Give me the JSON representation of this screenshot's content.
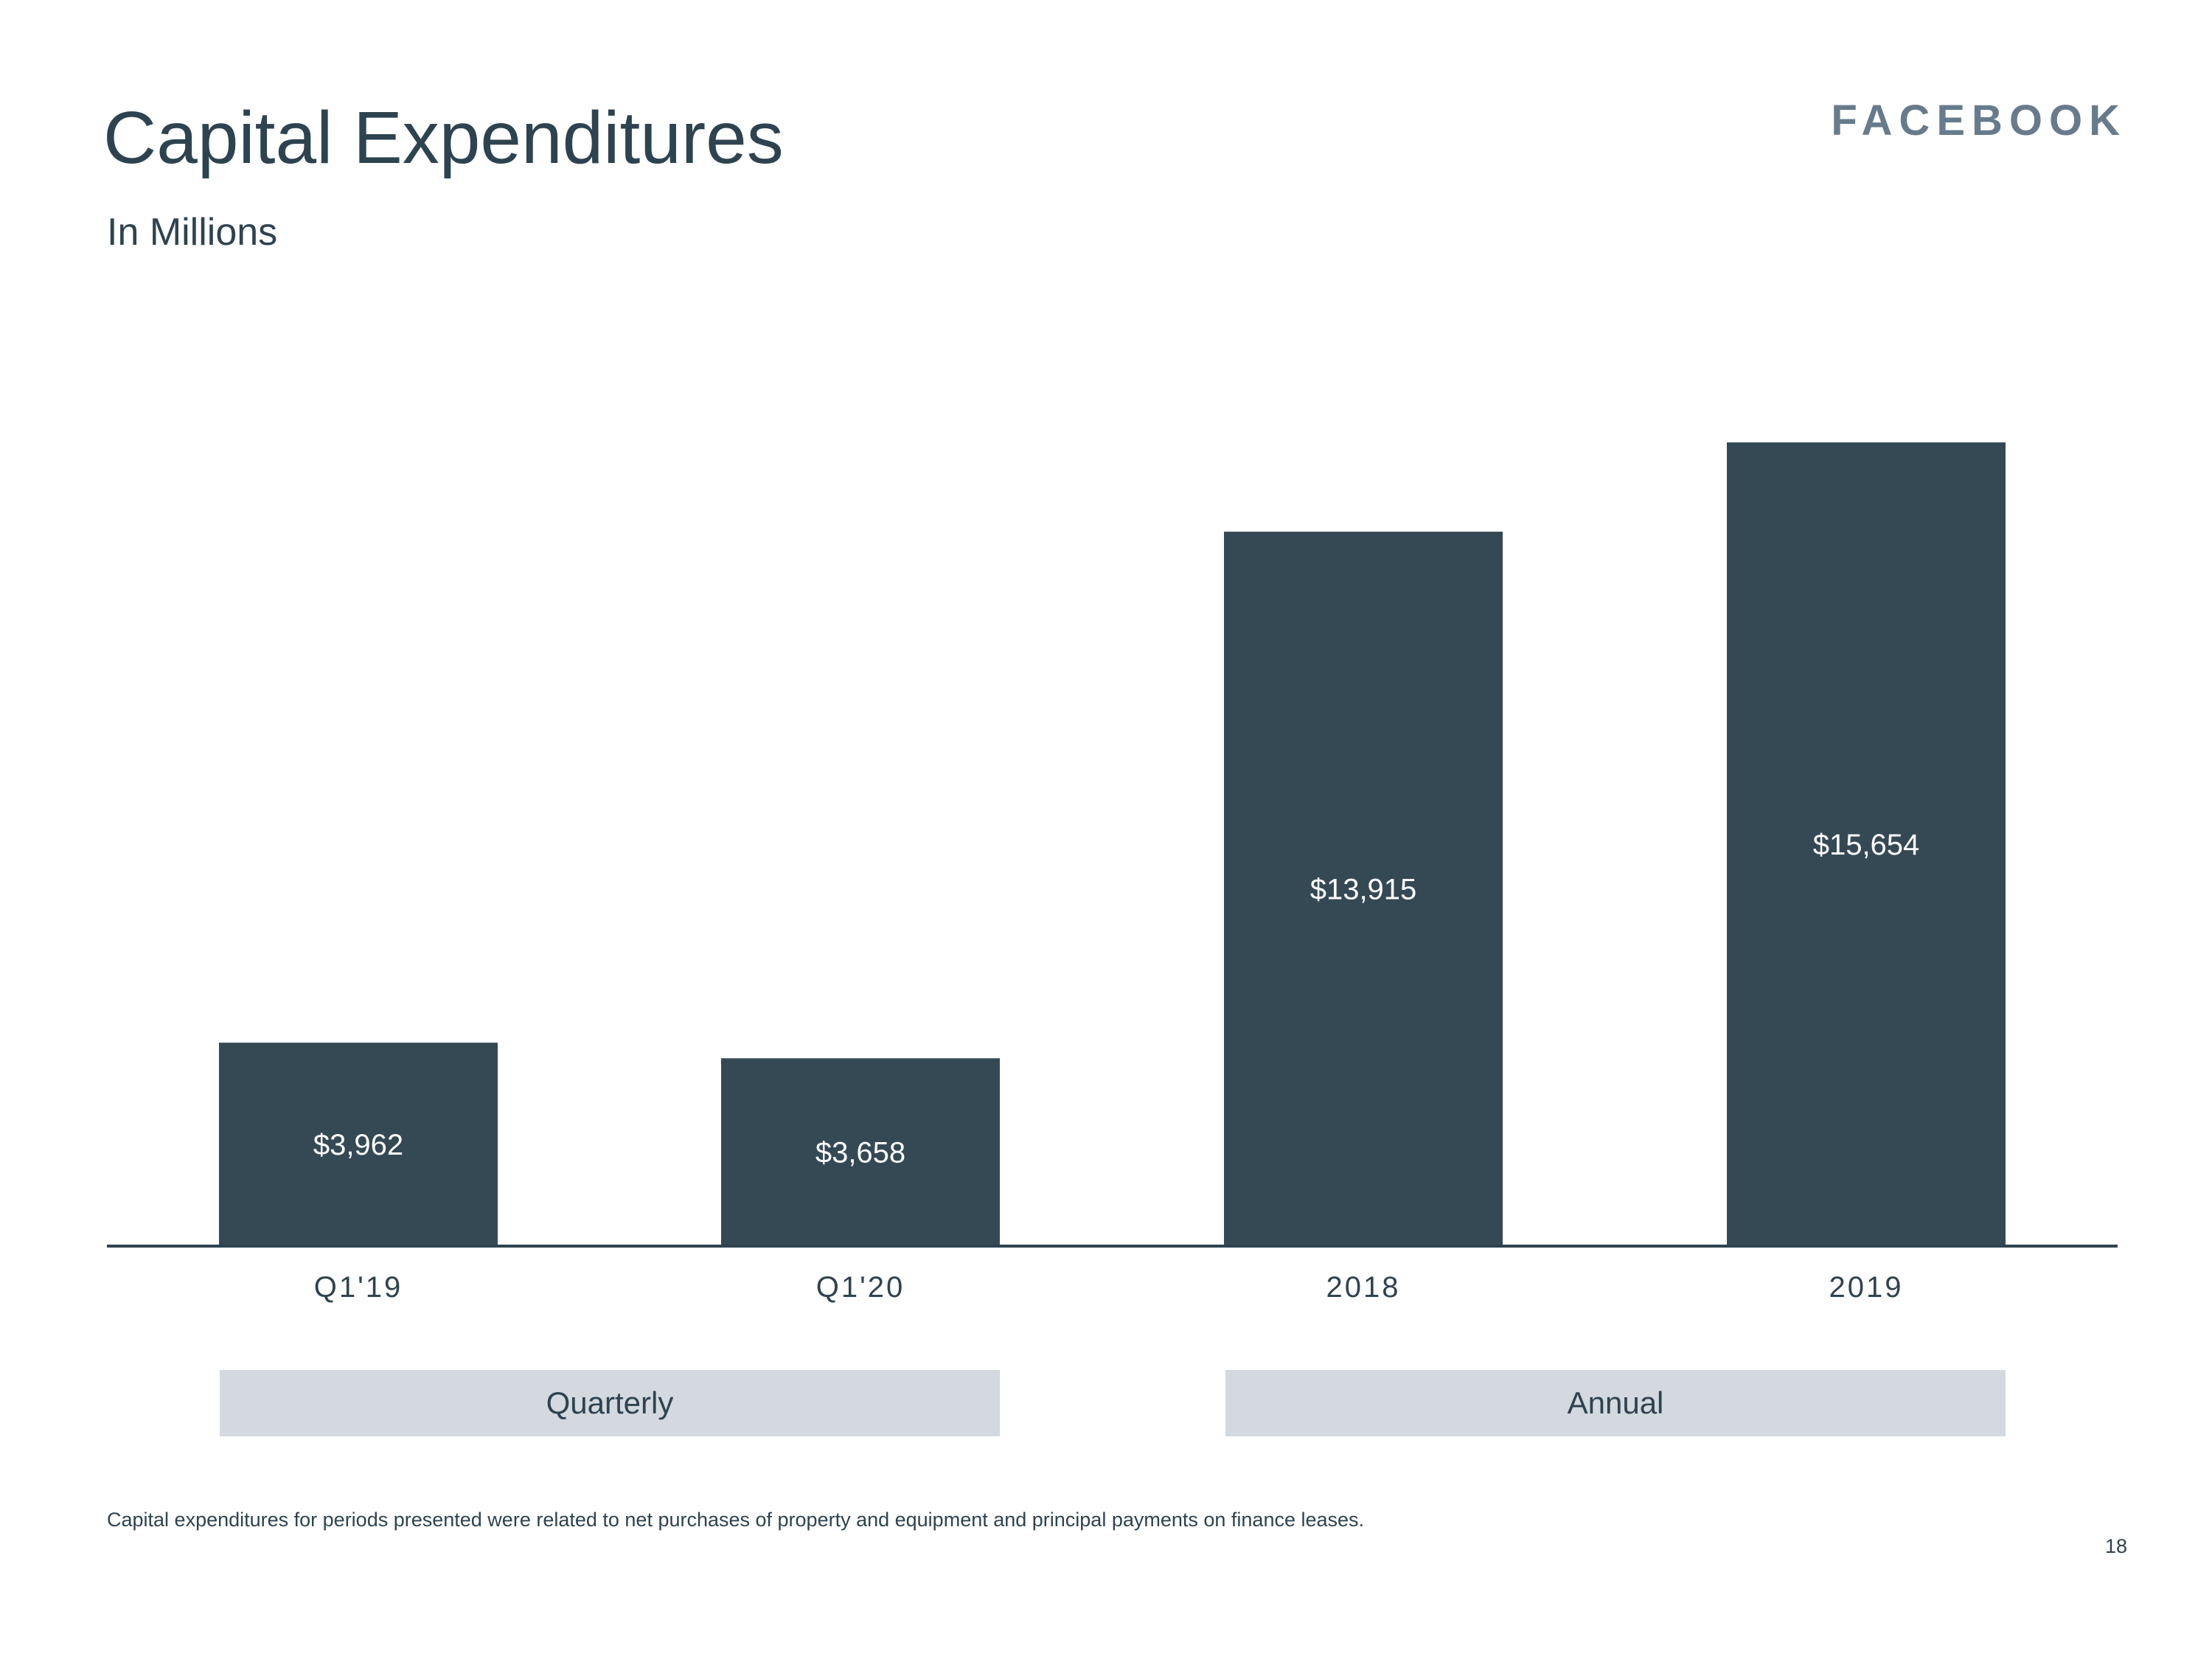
{
  "slide": {
    "title": "Capital Expenditures",
    "subtitle": "In Millions",
    "logo": "FACEBOOK",
    "footnote": "Capital expenditures for periods presented were related to net purchases of property and equipment and principal payments on finance leases.",
    "page_number": "18",
    "groups": [
      "Quarterly",
      "Annual"
    ]
  },
  "colors": {
    "bar": "#354955",
    "axis": "#2e4350",
    "label_inside": "#ffffff",
    "group_box": "#d3d9df",
    "text": "#2e4350",
    "logo": "#677b8c"
  },
  "chart_data": {
    "type": "bar",
    "title": "Capital Expenditures",
    "subtitle": "In Millions",
    "xlabel": "",
    "ylabel": "",
    "categories": [
      "Q1'19",
      "Q1'20",
      "2018",
      "2019"
    ],
    "values": [
      3962,
      3658,
      13915,
      15654
    ],
    "data_labels": [
      "$3,962",
      "$3,658",
      "$13,915",
      "$15,654"
    ],
    "ylim": [
      0,
      15654
    ],
    "grid": false,
    "legend": "none"
  }
}
